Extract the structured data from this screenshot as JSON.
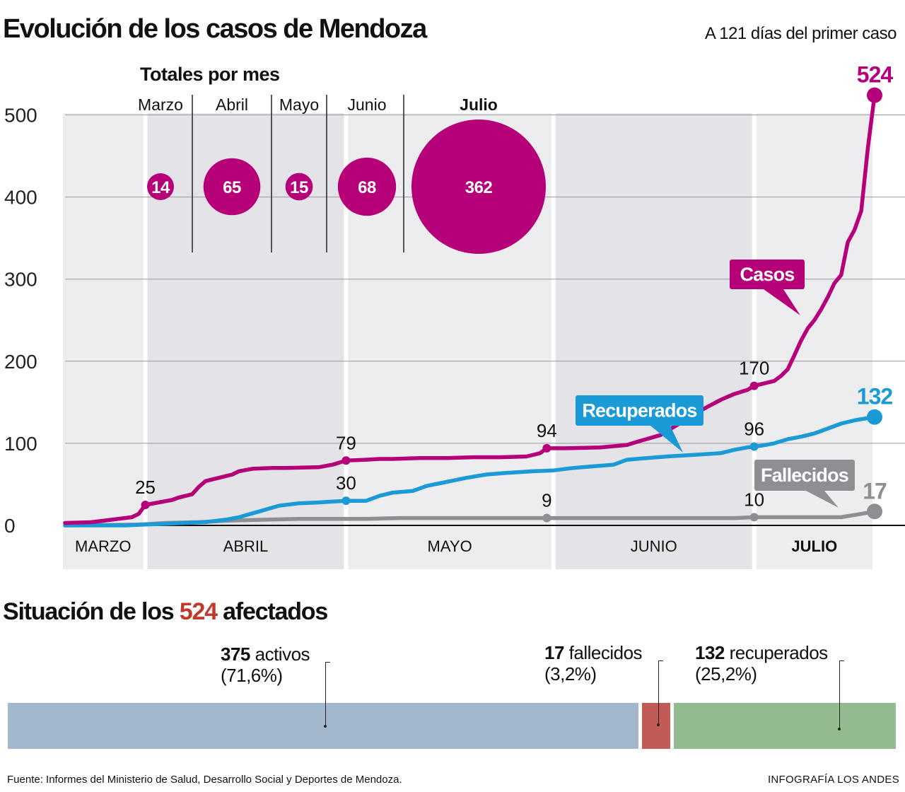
{
  "header": {
    "title": "Evolución de los casos de Mendoza",
    "subtitle": "A 121 días del primer caso"
  },
  "chart_data": {
    "type": "line",
    "title": "Evolución de los casos de Mendoza",
    "ylim": [
      0,
      500
    ],
    "yticks": [
      0,
      100,
      200,
      300,
      400,
      500
    ],
    "total_days": 121,
    "months": [
      {
        "name": "MARZO",
        "start": 0,
        "end": 12,
        "shade": "#ededef",
        "bold": false
      },
      {
        "name": "ABRIL",
        "start": 12,
        "end": 42,
        "shade": "#e4e4e8",
        "bold": false
      },
      {
        "name": "MAYO",
        "start": 42,
        "end": 73,
        "shade": "#ededef",
        "bold": false
      },
      {
        "name": "JUNIO",
        "start": 73,
        "end": 103,
        "shade": "#e4e4e8",
        "bold": false
      },
      {
        "name": "JULIO",
        "start": 103,
        "end": 121,
        "shade": "#ededef",
        "bold": true
      }
    ],
    "series": [
      {
        "name": "Casos",
        "color": "#b5007a",
        "points": [
          [
            0,
            3
          ],
          [
            4,
            4
          ],
          [
            7,
            7
          ],
          [
            10,
            10
          ],
          [
            11,
            14
          ],
          [
            12,
            25
          ],
          [
            14,
            28
          ],
          [
            16,
            31
          ],
          [
            17,
            34
          ],
          [
            19,
            38
          ],
          [
            20,
            47
          ],
          [
            21,
            54
          ],
          [
            23,
            58
          ],
          [
            25,
            62
          ],
          [
            26,
            66
          ],
          [
            28,
            69
          ],
          [
            31,
            70
          ],
          [
            33,
            70
          ],
          [
            38,
            71
          ],
          [
            40,
            74
          ],
          [
            42,
            79
          ],
          [
            45,
            80
          ],
          [
            47,
            81
          ],
          [
            49,
            81
          ],
          [
            53,
            82
          ],
          [
            57,
            82
          ],
          [
            61,
            83
          ],
          [
            65,
            83
          ],
          [
            69,
            84
          ],
          [
            71,
            88
          ],
          [
            72,
            94
          ],
          [
            75,
            94
          ],
          [
            80,
            95
          ],
          [
            84,
            98
          ],
          [
            86,
            103
          ],
          [
            89,
            110
          ],
          [
            92,
            125
          ],
          [
            95,
            140
          ],
          [
            98,
            153
          ],
          [
            100,
            160
          ],
          [
            102,
            165
          ],
          [
            103,
            170
          ],
          [
            104,
            172
          ],
          [
            106,
            176
          ],
          [
            107,
            182
          ],
          [
            108,
            190
          ],
          [
            109,
            207
          ],
          [
            110,
            225
          ],
          [
            111,
            240
          ],
          [
            112,
            250
          ],
          [
            113,
            263
          ],
          [
            114,
            278
          ],
          [
            115,
            295
          ],
          [
            116,
            305
          ],
          [
            117,
            345
          ],
          [
            118,
            360
          ],
          [
            119,
            383
          ],
          [
            120,
            460
          ],
          [
            121,
            524
          ]
        ]
      },
      {
        "name": "Recuperados",
        "color": "#1a9bd7",
        "points": [
          [
            0,
            0
          ],
          [
            9,
            0
          ],
          [
            12,
            1
          ],
          [
            15,
            2
          ],
          [
            18,
            3
          ],
          [
            21,
            4
          ],
          [
            24,
            7
          ],
          [
            26,
            10
          ],
          [
            29,
            17
          ],
          [
            32,
            24
          ],
          [
            35,
            27
          ],
          [
            38,
            28
          ],
          [
            40,
            29
          ],
          [
            42,
            30
          ],
          [
            45,
            30
          ],
          [
            47,
            36
          ],
          [
            49,
            40
          ],
          [
            52,
            42
          ],
          [
            54,
            48
          ],
          [
            57,
            53
          ],
          [
            60,
            58
          ],
          [
            63,
            62
          ],
          [
            66,
            64
          ],
          [
            70,
            66
          ],
          [
            73,
            67
          ],
          [
            76,
            70
          ],
          [
            79,
            72
          ],
          [
            82,
            74
          ],
          [
            84,
            80
          ],
          [
            87,
            82
          ],
          [
            90,
            84
          ],
          [
            94,
            86
          ],
          [
            98,
            88
          ],
          [
            100,
            92
          ],
          [
            102,
            95
          ],
          [
            103,
            96
          ],
          [
            104,
            97
          ],
          [
            106,
            100
          ],
          [
            108,
            105
          ],
          [
            110,
            108
          ],
          [
            112,
            112
          ],
          [
            114,
            118
          ],
          [
            116,
            124
          ],
          [
            118,
            128
          ],
          [
            121,
            132
          ]
        ]
      },
      {
        "name": "Fallecidos",
        "color": "#8e8e93",
        "points": [
          [
            0,
            0
          ],
          [
            11,
            1
          ],
          [
            13,
            2
          ],
          [
            15,
            3
          ],
          [
            20,
            4
          ],
          [
            25,
            6
          ],
          [
            30,
            7
          ],
          [
            35,
            8
          ],
          [
            40,
            8
          ],
          [
            45,
            8
          ],
          [
            50,
            9
          ],
          [
            60,
            9
          ],
          [
            72,
            9
          ],
          [
            80,
            9
          ],
          [
            90,
            9
          ],
          [
            100,
            9
          ],
          [
            103,
            10
          ],
          [
            110,
            10
          ],
          [
            116,
            10
          ],
          [
            119,
            14
          ],
          [
            121,
            17
          ]
        ]
      }
    ],
    "annotations": [
      {
        "series": "Casos",
        "x": 12,
        "value": 25,
        "label": "25"
      },
      {
        "series": "Casos",
        "x": 42,
        "value": 79,
        "label": "79"
      },
      {
        "series": "Casos",
        "x": 72,
        "value": 94,
        "label": "94"
      },
      {
        "series": "Casos",
        "x": 103,
        "value": 170,
        "label": "170"
      },
      {
        "series": "Recuperados",
        "x": 42,
        "value": 30,
        "label": "30"
      },
      {
        "series": "Recuperados",
        "x": 103,
        "value": 96,
        "label": "96"
      },
      {
        "series": "Fallecidos",
        "x": 72,
        "value": 9,
        "label": "9"
      },
      {
        "series": "Fallecidos",
        "x": 103,
        "value": 10,
        "label": "10"
      }
    ],
    "end_labels": [
      {
        "series": "Casos",
        "value": 524,
        "label": "524"
      },
      {
        "series": "Recuperados",
        "value": 132,
        "label": "132"
      },
      {
        "series": "Fallecidos",
        "value": 17,
        "label": "17"
      }
    ],
    "series_tags": [
      {
        "series": "Casos",
        "label": "Casos",
        "at_day": 115
      },
      {
        "series": "Recuperados",
        "label": "Recuperados",
        "at_day": 92
      },
      {
        "series": "Fallecidos",
        "label": "Fallecidos",
        "at_day": 116
      }
    ],
    "monthly_totals": {
      "title": "Totales por mes",
      "items": [
        {
          "month": "Marzo",
          "value": 14,
          "bold": false
        },
        {
          "month": "Abril",
          "value": 65,
          "bold": false
        },
        {
          "month": "Mayo",
          "value": 15,
          "bold": false
        },
        {
          "month": "Junio",
          "value": 68,
          "bold": false
        },
        {
          "month": "Julio",
          "value": 362,
          "bold": true
        }
      ]
    }
  },
  "situation": {
    "title_prefix": "Situación de los",
    "title_number": "524",
    "title_suffix": "afectados",
    "segments": [
      {
        "name": "activos",
        "count": "375",
        "label": "activos",
        "percent_text": "(71,6%)",
        "share": 0.716,
        "color": "#a3b8cd"
      },
      {
        "name": "fallecidos",
        "count": "17",
        "label": "fallecidos",
        "percent_text": "(3,2%)",
        "share": 0.032,
        "color": "#c15b57"
      },
      {
        "name": "recuperados",
        "count": "132",
        "label": "recuperados",
        "percent_text": "(25,2%)",
        "share": 0.252,
        "color": "#93bb8f"
      }
    ]
  },
  "footer": {
    "source": "Fuente: Informes del Ministerio de Salud, Desarrollo Social y Deportes de Mendoza.",
    "credit": "INFOGRAFÍA LOS ANDES"
  }
}
